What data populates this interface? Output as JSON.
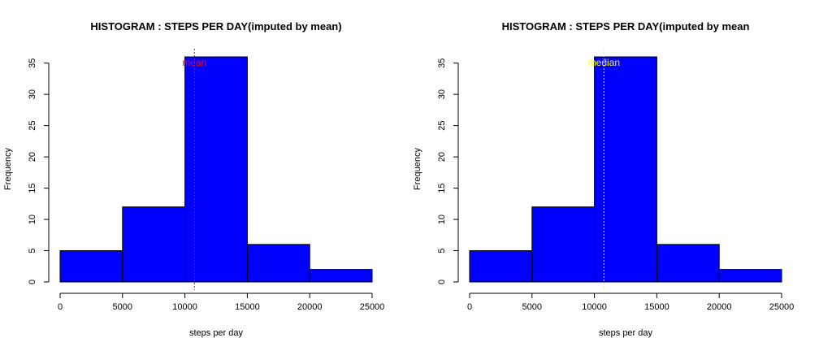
{
  "chart_data": [
    {
      "type": "bar",
      "title": "HISTOGRAM : STEPS PER DAY(imputed by mean)",
      "xlabel": "steps per day",
      "ylabel": "Frequency",
      "bins": [
        [
          0,
          5000
        ],
        [
          5000,
          10000
        ],
        [
          10000,
          15000
        ],
        [
          15000,
          20000
        ],
        [
          20000,
          25000
        ]
      ],
      "values": [
        5,
        12,
        36,
        6,
        2
      ],
      "xlim": [
        0,
        25000
      ],
      "ylim": [
        0,
        36
      ],
      "xticks": [
        "0",
        "5000",
        "10000",
        "15000",
        "20000",
        "25000"
      ],
      "yticks": [
        "0",
        "5",
        "10",
        "15",
        "20",
        "25",
        "30",
        "35"
      ],
      "bar_color": "#0000ff",
      "reference_line": {
        "label": "mean",
        "value": 10766.19,
        "color": "#ff0000"
      }
    },
    {
      "type": "bar",
      "title": "HISTOGRAM : STEPS PER DAY(imputed by mean",
      "xlabel": "steps per day",
      "ylabel": "Frequency",
      "bins": [
        [
          0,
          5000
        ],
        [
          5000,
          10000
        ],
        [
          10000,
          15000
        ],
        [
          15000,
          20000
        ],
        [
          20000,
          25000
        ]
      ],
      "values": [
        5,
        12,
        36,
        6,
        2
      ],
      "xlim": [
        0,
        25000
      ],
      "ylim": [
        0,
        36
      ],
      "xticks": [
        "0",
        "5000",
        "10000",
        "15000",
        "20000",
        "25000"
      ],
      "yticks": [
        "0",
        "5",
        "10",
        "15",
        "20",
        "25",
        "30",
        "35"
      ],
      "bar_color": "#0000ff",
      "reference_line": {
        "label": "median",
        "value": 10766.19,
        "color": "#ffff00"
      }
    }
  ]
}
